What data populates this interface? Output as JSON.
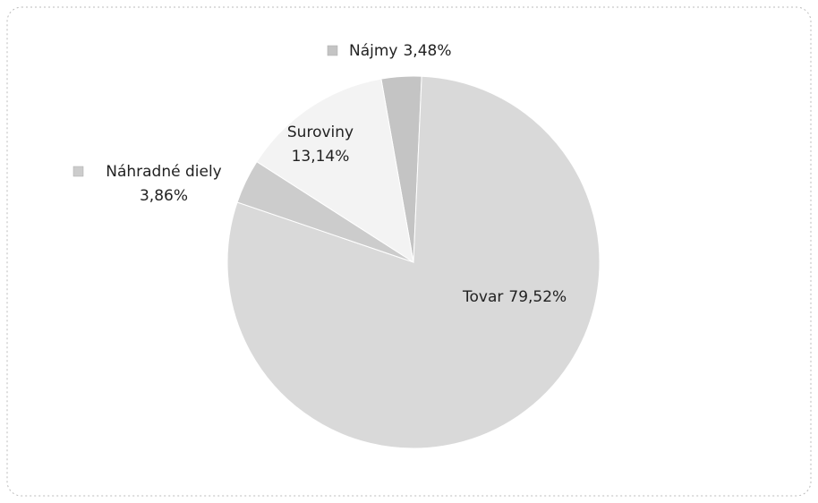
{
  "chart_data": {
    "type": "pie",
    "categories": [
      "Nájmy",
      "Tovar",
      "Náhradné diely",
      "Suroviny"
    ],
    "values": [
      3.48,
      79.52,
      3.86,
      13.14
    ],
    "value_labels": [
      "3,48%",
      "79,52%",
      "3,86%",
      "13,14%"
    ],
    "colors": [
      "#c4c4c4",
      "#d9d9d9",
      "#cccccc",
      "#f3f3f3"
    ]
  }
}
